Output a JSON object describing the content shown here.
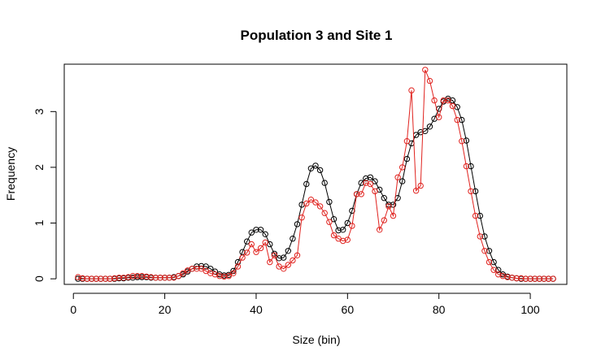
{
  "chart_data": {
    "type": "line",
    "title": "Population 3 and Site 1",
    "xlabel": "Size (bin)",
    "ylabel": "Frequency",
    "xlim": [
      -2,
      108
    ],
    "ylim": [
      -0.1,
      3.85
    ],
    "xticks": [
      0,
      20,
      40,
      60,
      80,
      100
    ],
    "yticks": [
      0,
      1,
      2,
      3
    ],
    "grid": false,
    "legend": "none",
    "series": [
      {
        "color": "#000000",
        "marker": "open-circle",
        "x": [
          1,
          2,
          3,
          4,
          5,
          6,
          7,
          8,
          9,
          10,
          11,
          12,
          13,
          14,
          15,
          16,
          17,
          18,
          19,
          20,
          21,
          22,
          23,
          24,
          25,
          26,
          27,
          28,
          29,
          30,
          31,
          32,
          33,
          34,
          35,
          36,
          37,
          38,
          39,
          40,
          41,
          42,
          43,
          44,
          45,
          46,
          47,
          48,
          49,
          50,
          51,
          52,
          53,
          54,
          55,
          56,
          57,
          58,
          59,
          60,
          61,
          62,
          63,
          64,
          65,
          66,
          67,
          68,
          69,
          70,
          71,
          72,
          73,
          74,
          75,
          76,
          77,
          78,
          79,
          80,
          81,
          82,
          83,
          84,
          85,
          86,
          87,
          88,
          89,
          90,
          91,
          92,
          93,
          94,
          95,
          96,
          97,
          98,
          99,
          100,
          101,
          102,
          103,
          104,
          105
        ],
        "y": [
          0,
          0,
          0,
          0,
          0,
          0,
          0,
          0,
          0,
          0.01,
          0.01,
          0.02,
          0.02,
          0.03,
          0.03,
          0.03,
          0.02,
          0.02,
          0.02,
          0.02,
          0.02,
          0.03,
          0.05,
          0.08,
          0.13,
          0.18,
          0.22,
          0.23,
          0.22,
          0.18,
          0.13,
          0.08,
          0.06,
          0.07,
          0.14,
          0.3,
          0.48,
          0.67,
          0.83,
          0.88,
          0.88,
          0.8,
          0.62,
          0.45,
          0.37,
          0.38,
          0.5,
          0.72,
          0.98,
          1.33,
          1.7,
          1.98,
          2.03,
          1.95,
          1.72,
          1.38,
          1.07,
          0.87,
          0.88,
          1.0,
          1.22,
          1.52,
          1.72,
          1.8,
          1.82,
          1.75,
          1.6,
          1.45,
          1.33,
          1.33,
          1.45,
          1.75,
          2.15,
          2.43,
          2.58,
          2.63,
          2.65,
          2.73,
          2.87,
          3.05,
          3.18,
          3.23,
          3.2,
          3.08,
          2.85,
          2.48,
          2.02,
          1.57,
          1.13,
          0.76,
          0.5,
          0.3,
          0.16,
          0.08,
          0.04,
          0.02,
          0.01,
          0,
          0,
          0,
          0,
          0,
          0,
          0,
          0
        ]
      },
      {
        "color": "#e0221e",
        "marker": "open-circle",
        "x": [
          1,
          2,
          3,
          4,
          5,
          6,
          7,
          8,
          9,
          10,
          11,
          12,
          13,
          14,
          15,
          16,
          17,
          18,
          19,
          20,
          21,
          22,
          23,
          24,
          25,
          26,
          27,
          28,
          29,
          30,
          31,
          32,
          33,
          34,
          35,
          36,
          37,
          38,
          39,
          40,
          41,
          42,
          43,
          44,
          45,
          46,
          47,
          48,
          49,
          50,
          51,
          52,
          53,
          54,
          55,
          56,
          57,
          58,
          59,
          60,
          61,
          62,
          63,
          64,
          65,
          66,
          67,
          68,
          69,
          70,
          71,
          72,
          73,
          74,
          75,
          76,
          77,
          78,
          79,
          80,
          81,
          82,
          83,
          84,
          85,
          86,
          87,
          88,
          89,
          90,
          91,
          92,
          93,
          94,
          95,
          96,
          97,
          98,
          99,
          100,
          101,
          102,
          103,
          104,
          105
        ],
        "y": [
          0.03,
          0.01,
          0,
          0,
          0,
          0,
          0,
          0,
          0.01,
          0.02,
          0.02,
          0.03,
          0.05,
          0.05,
          0.05,
          0.04,
          0.03,
          0.02,
          0.02,
          0.02,
          0.02,
          0.02,
          0.05,
          0.1,
          0.15,
          0.18,
          0.18,
          0.18,
          0.14,
          0.1,
          0.08,
          0.05,
          0.04,
          0.05,
          0.1,
          0.22,
          0.38,
          0.47,
          0.62,
          0.48,
          0.55,
          0.65,
          0.3,
          0.42,
          0.22,
          0.18,
          0.25,
          0.33,
          0.42,
          1.1,
          1.35,
          1.42,
          1.37,
          1.3,
          1.18,
          1.02,
          0.78,
          0.72,
          0.68,
          0.7,
          0.95,
          1.52,
          1.52,
          1.72,
          1.7,
          1.57,
          0.88,
          1.05,
          1.3,
          1.13,
          1.82,
          2.0,
          2.47,
          3.38,
          1.58,
          1.67,
          3.75,
          3.55,
          3.2,
          2.9,
          3.2,
          3.2,
          3.1,
          2.85,
          2.47,
          2.02,
          1.57,
          1.13,
          0.76,
          0.5,
          0.3,
          0.16,
          0.08,
          0.05,
          0.03,
          0.02,
          0.01,
          0.01,
          0,
          0,
          0,
          0,
          0,
          0,
          0
        ]
      }
    ]
  }
}
